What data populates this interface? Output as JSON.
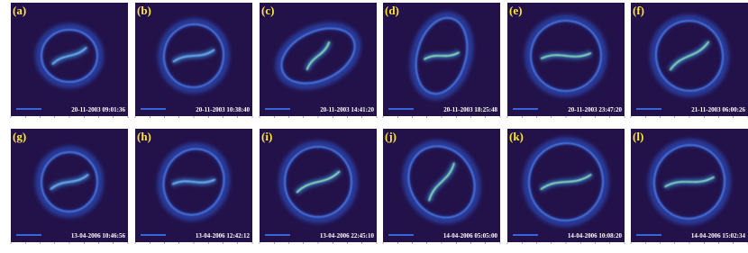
{
  "panels": [
    {
      "label": "(a)",
      "timestamp": "20-11-2003 09:01:36"
    },
    {
      "label": "(b)",
      "timestamp": "20-11-2003 10:38:40"
    },
    {
      "label": "(c)",
      "timestamp": "20-11-2003 14:41:20"
    },
    {
      "label": "(d)",
      "timestamp": "20-11-2003 18:25:48"
    },
    {
      "label": "(e)",
      "timestamp": "20-11-2003 23:47:20"
    },
    {
      "label": "(f)",
      "timestamp": "21-11-2003 06:00:26"
    },
    {
      "label": "(g)",
      "timestamp": "13-04-2006 10:46:56"
    },
    {
      "label": "(h)",
      "timestamp": "13-04-2006 12:42:12"
    },
    {
      "label": "(i)",
      "timestamp": "13-04-2006 22:45:10"
    },
    {
      "label": "(j)",
      "timestamp": "14-04-2006 05:05:00"
    },
    {
      "label": "(k)",
      "timestamp": "14-04-2006 10:08:20"
    },
    {
      "label": "(l)",
      "timestamp": "14-04-2006 15:02:34"
    }
  ]
}
